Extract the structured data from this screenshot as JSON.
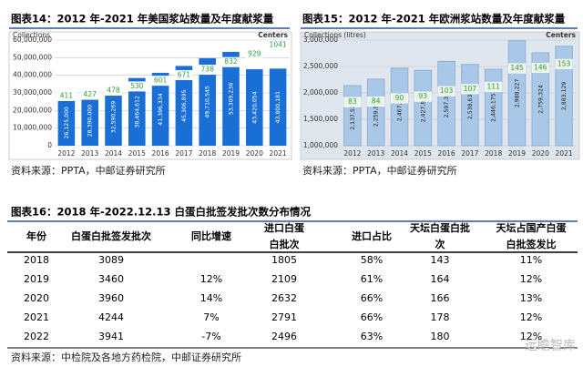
{
  "chart_data": [
    {
      "type": "bar",
      "title": "图表14：2012 年-2021 年美国浆站数量及年度献浆量",
      "source": "资料来源：PPTA，中邮证券研究所",
      "categories": [
        "2012",
        "2013",
        "2014",
        "2015",
        "2016",
        "2017",
        "2018",
        "2019",
        "2020",
        "2021"
      ],
      "series": [
        {
          "name": "Collections",
          "color": "#1a6fd6",
          "values": [
            26125000,
            28390000,
            32590269,
            38464612,
            41396334,
            45306895,
            49710545,
            53309238,
            43420054,
            43800181
          ],
          "value_labels": [
            "26,125,000",
            "28,390,000",
            "32,590,269",
            "38,464,612",
            "41,396,334",
            "45,306,895",
            "49,710,545",
            "53,309,238",
            "43,420,054",
            "43,800,181"
          ]
        },
        {
          "name": "Centers",
          "color": "#2e9e3e",
          "axis": "y2",
          "values": [
            411,
            427,
            478,
            530,
            601,
            671,
            738,
            832,
            929,
            1041
          ]
        }
      ],
      "ylim": [
        0,
        60000000
      ],
      "yticks": [
        0,
        {
          "value": 10000000,
          "label": "10,000,000"
        },
        {
          "value": 20000000,
          "label": "20,000,000"
        },
        {
          "value": 30000000,
          "label": "30,000,000"
        },
        {
          "value": 40000000,
          "label": "40,000,000"
        },
        {
          "value": 50000000,
          "label": "50,000,000"
        },
        {
          "value": 60000000,
          "label": "60,000,000"
        }
      ],
      "y2lim": [
        -206,
        1106
      ],
      "grid": true,
      "background": "#ffffff"
    },
    {
      "type": "bar",
      "title": "图表15：2012 年-2021 年欧洲浆站数量及年度献浆量",
      "source": "资料来源：PPTA，中邮证券研究所",
      "categories": [
        "2012",
        "2013",
        "2014",
        "2015",
        "2016",
        "2017",
        "2018",
        "2019",
        "2020",
        "2021"
      ],
      "series": [
        {
          "name": "Collections (litres)",
          "color": "#a9c8e8",
          "values": [
            2137521,
            2259931,
            2467983,
            2427860,
            2597395,
            2538634,
            2446175,
            2988227,
            2759324,
            2883129
          ],
          "value_labels": [
            "2,137,521",
            "2,259,931",
            "2,467,983",
            "2,427,860",
            "2,597,395",
            "2,538,634",
            "2,446,175",
            "2,988,227",
            "2,759,324",
            "2,883,129"
          ]
        },
        {
          "name": "Centers",
          "color": "#2e9e3e",
          "axis": "y2",
          "values": [
            83,
            84,
            90,
            93,
            103,
            107,
            111,
            145,
            146,
            153
          ]
        }
      ],
      "ylim": [
        1000000,
        3000000
      ],
      "yticks": [
        {
          "value": 1000000,
          "label": "1,000,000"
        },
        {
          "value": 1500000,
          "label": "1,500,000"
        },
        {
          "value": 2000000,
          "label": "2,000,000"
        },
        {
          "value": 2500000,
          "label": "2,500,000"
        },
        {
          "value": 3000000,
          "label": "3,000,000"
        }
      ],
      "y2lim": [
        3,
        197
      ],
      "grid": true,
      "background": "#dfe6ee"
    }
  ],
  "table": {
    "title": "图表16：2018 年-2022.12.13 白蛋白批签发批次数分布情况",
    "headers": [
      "年份",
      "白蛋白批签发批次",
      "同比增速",
      "进口白蛋白批次",
      "进口占比",
      "天坛白蛋白批次",
      "天坛占国产白蛋白批签发比"
    ],
    "rows": [
      [
        "2018",
        "3089",
        null,
        "1805",
        "58%",
        "143",
        "11%"
      ],
      [
        "2019",
        "3460",
        "12%",
        "2109",
        "61%",
        "164",
        "12%"
      ],
      [
        "2020",
        "3960",
        "14%",
        "2632",
        "66%",
        "166",
        "13%"
      ],
      [
        "2021",
        "4244",
        "7%",
        "2791",
        "66%",
        "178",
        "12%"
      ],
      [
        "2022",
        "3941",
        "-7%",
        "2496",
        "63%",
        "180",
        "12%"
      ]
    ],
    "source": "资料来源：中检院及各地方药检院，中邮证券研究所"
  },
  "watermark": "远瞻智库"
}
